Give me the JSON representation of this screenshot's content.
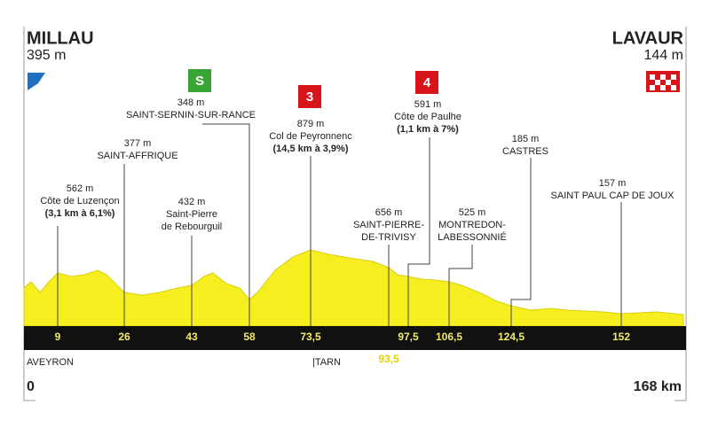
{
  "start": {
    "name": "MILLAU",
    "altitude": "395 m"
  },
  "finish": {
    "name": "LAVAUR",
    "altitude": "144 m"
  },
  "badges": {
    "sprint": "S",
    "climb_1": "3",
    "climb_2": "4"
  },
  "waypoints": [
    {
      "altitude": "562 m",
      "lines": [
        "Côte de Luzençon",
        "(3,1 km à 6,1%)"
      ]
    },
    {
      "altitude": "377 m",
      "lines": [
        "SAINT-AFFRIQUE"
      ]
    },
    {
      "altitude": "348 m",
      "lines": [
        "SAINT-SERNIN-SUR-RANCE"
      ]
    },
    {
      "altitude": "432 m",
      "lines": [
        "Saint-Pierre",
        "de Rebourguil"
      ]
    },
    {
      "altitude": "879 m",
      "lines": [
        "Col de Peyronnenc",
        "(14,5 km à 3,9%)"
      ]
    },
    {
      "altitude": "656 m",
      "lines": [
        "SAINT-PIERRE-",
        "DE-TRIVISY"
      ]
    },
    {
      "altitude": "591 m",
      "lines": [
        "Côte de Paulhe",
        "(1,1 km à 7%)"
      ]
    },
    {
      "altitude": "525 m",
      "lines": [
        "MONTREDON-",
        "LABESSONNIÉ"
      ]
    },
    {
      "altitude": "185 m",
      "lines": [
        "CASTRES"
      ]
    },
    {
      "altitude": "157 m",
      "lines": [
        "SAINT PAUL CAP DE JOUX"
      ]
    }
  ],
  "km_markers": [
    "9",
    "26",
    "43",
    "58",
    "73,5",
    "93,5",
    "97,5",
    "106,5",
    "124,5",
    "152"
  ],
  "regions": [
    "AVEYRON",
    "|TARN"
  ],
  "distance": {
    "start": "0",
    "end": "168 km"
  }
}
